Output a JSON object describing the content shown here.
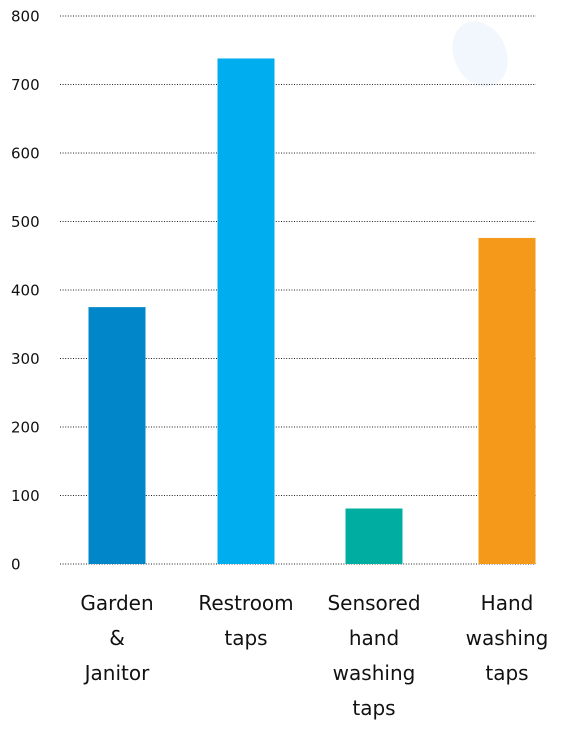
{
  "chart_data": {
    "type": "bar",
    "categories": [
      [
        "Garden",
        "&",
        "Janitor"
      ],
      [
        "Restroom",
        "taps"
      ],
      [
        "Sensored",
        "hand",
        "washing",
        "taps"
      ],
      [
        "Hand",
        "washing",
        "taps"
      ]
    ],
    "values": [
      375,
      738,
      81,
      476
    ],
    "colors": [
      "#0187C9",
      "#00AEEF",
      "#00AEA1",
      "#F4991A"
    ],
    "yticks": [
      "0",
      "100",
      "200",
      "300",
      "400",
      "500",
      "600",
      "700",
      "800"
    ],
    "ylim": [
      0,
      800
    ],
    "grid": true,
    "legend": "none"
  }
}
